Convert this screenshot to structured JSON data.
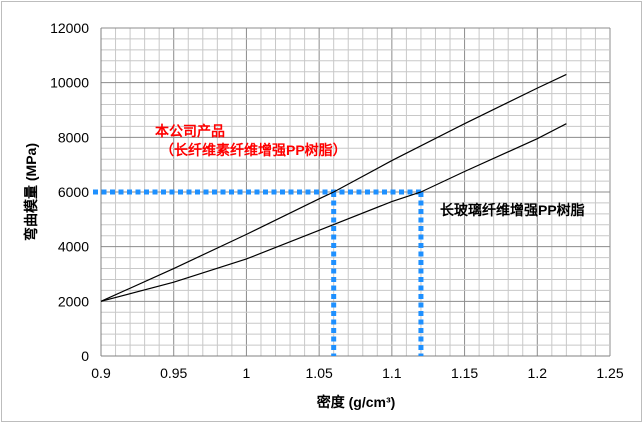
{
  "chart_data": {
    "type": "line",
    "xlabel": "密度 (g/cm³)",
    "ylabel": "弯曲模量 (MPa)",
    "xlim": [
      0.9,
      1.25
    ],
    "ylim": [
      0,
      12000
    ],
    "x_ticks": [
      "0.9",
      "0.95",
      "1",
      "1.05",
      "1.1",
      "1.15",
      "1.2",
      "1.25"
    ],
    "y_ticks": [
      "0",
      "2000",
      "4000",
      "6000",
      "8000",
      "10000",
      "12000"
    ],
    "grid": true,
    "series": [
      {
        "label": "本公司产品（长纤维素纤维增强PP树脂）",
        "color": "#000000",
        "x": [
          0.9,
          0.95,
          1.0,
          1.05,
          1.06,
          1.1,
          1.15,
          1.2,
          1.22
        ],
        "y": [
          2000,
          3200,
          4450,
          5750,
          6000,
          7150,
          8500,
          9800,
          10300
        ]
      },
      {
        "label": "长玻璃纤维增强PP树脂",
        "color": "#000000",
        "x": [
          0.9,
          0.95,
          1.0,
          1.05,
          1.1,
          1.12,
          1.15,
          1.2,
          1.22
        ],
        "y": [
          2000,
          2700,
          3550,
          4600,
          5650,
          6000,
          6750,
          7950,
          8500
        ]
      }
    ],
    "reference_lines": {
      "color": "#1e90ff",
      "y": 6000,
      "x": [
        1.06,
        1.12
      ]
    },
    "annotations": [
      {
        "text": "本公司产品",
        "color": "#ff0000"
      },
      {
        "text": "（长纤维素纤维增强PP树脂）",
        "color": "#ff0000"
      },
      {
        "text": "长玻璃纤维增强PP树脂",
        "color": "#000000"
      }
    ]
  }
}
